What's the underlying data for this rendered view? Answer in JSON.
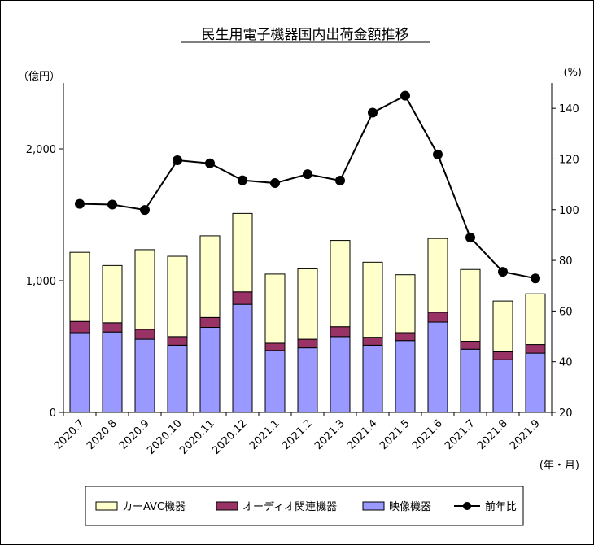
{
  "chart_data": {
    "type": "bar",
    "title": "民生用電子機器国内出荷金額推移",
    "ylabel_left": "（億円）",
    "ylabel_right": "(%)",
    "xlabel": "(年・月)",
    "categories": [
      "2020.7",
      "2020.8",
      "2020.9",
      "2020.10",
      "2020.11",
      "2020.12",
      "2021.1",
      "2021.2",
      "2021.3",
      "2021.4",
      "2021.5",
      "2021.6",
      "2021.7",
      "2021.8",
      "2021.9"
    ],
    "left_axis": {
      "min": 0,
      "max": 2500,
      "ticks": [
        0,
        1000,
        2000
      ],
      "tick_labels": [
        "0",
        "1,000",
        "2,000"
      ]
    },
    "right_axis": {
      "min": 20,
      "max": 150,
      "ticks": [
        20,
        40,
        60,
        80,
        100,
        120,
        140
      ],
      "tick_labels": [
        "20",
        "40",
        "60",
        "80",
        "100",
        "120",
        "140"
      ]
    },
    "stacked": true,
    "series": [
      {
        "name": "映像機器",
        "kind": "bar",
        "color": "#9999ff",
        "values": [
          605,
          610,
          555,
          510,
          645,
          820,
          470,
          490,
          575,
          510,
          545,
          685,
          480,
          400,
          450
        ]
      },
      {
        "name": "オーディオ関連機器",
        "kind": "bar",
        "color": "#993366",
        "values": [
          85,
          70,
          75,
          65,
          75,
          95,
          55,
          65,
          75,
          60,
          60,
          75,
          60,
          60,
          65
        ]
      },
      {
        "name": "カーAVC機器",
        "kind": "bar",
        "color": "#ffffcc",
        "values": [
          525,
          435,
          605,
          610,
          620,
          595,
          525,
          535,
          655,
          570,
          440,
          560,
          545,
          385,
          385
        ]
      },
      {
        "name": "前年比",
        "kind": "line",
        "axis": "right",
        "color": "#000000",
        "values": [
          102.3,
          102.0,
          99.9,
          119.5,
          118.3,
          111.6,
          110.5,
          114.0,
          111.5,
          138.3,
          145.0,
          121.8,
          89.0,
          75.5,
          72.9
        ]
      }
    ],
    "legend": {
      "placement": "bottom",
      "items": [
        "カーAVC機器",
        "オーディオ関連機器",
        "映像機器",
        "前年比"
      ]
    },
    "grid": false
  }
}
